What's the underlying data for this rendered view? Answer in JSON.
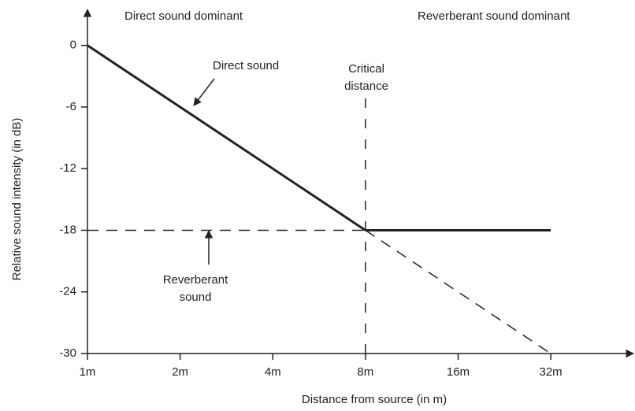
{
  "chart_data": {
    "type": "line",
    "xlabel": "Distance from source (in m)",
    "ylabel": "Relative sound intensity (in dB)",
    "xscale": "log2",
    "xlim": [
      1,
      58
    ],
    "ylim": [
      -30,
      3.5
    ],
    "xticks": [
      {
        "value": 1,
        "label": "1m"
      },
      {
        "value": 2,
        "label": "2m"
      },
      {
        "value": 4,
        "label": "4m"
      },
      {
        "value": 8,
        "label": "8m"
      },
      {
        "value": 16,
        "label": "16m"
      },
      {
        "value": 32,
        "label": "32m"
      }
    ],
    "yticks": [
      0,
      -6,
      -12,
      -18,
      -24,
      -30
    ],
    "critical_distance": 8,
    "series": [
      {
        "x": [
          1,
          8
        ],
        "values": [
          0,
          -18
        ],
        "style": "solid",
        "color": "#222222"
      },
      {
        "x": [
          8,
          32
        ],
        "values": [
          -18,
          -30
        ],
        "style": "dashed",
        "color": "#222222"
      },
      {
        "x": [
          1,
          8
        ],
        "values": [
          -18,
          -18
        ],
        "style": "dashed",
        "color": "#222222"
      },
      {
        "x": [
          8,
          32
        ],
        "values": [
          -18,
          -18
        ],
        "style": "solid",
        "color": "#222222"
      }
    ],
    "annotations": [
      {
        "lines": [
          "Direct sound dominant"
        ]
      },
      {
        "lines": [
          "Reverberant sound dominant"
        ]
      },
      {
        "lines": [
          "Direct sound"
        ]
      },
      {
        "lines": [
          "Critical",
          "distance"
        ]
      },
      {
        "lines": [
          "Reverberant",
          "sound"
        ]
      }
    ]
  }
}
